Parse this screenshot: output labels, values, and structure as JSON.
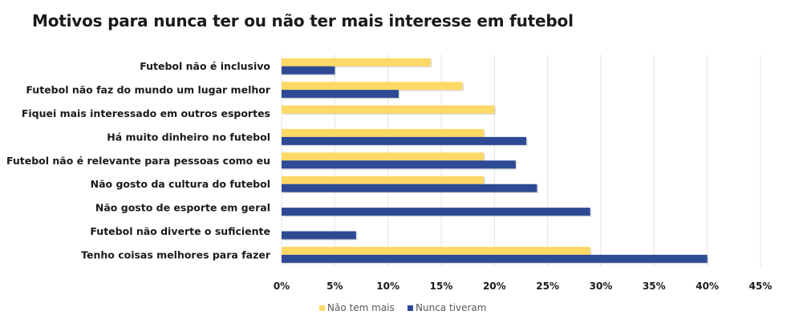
{
  "chart_data": {
    "type": "bar",
    "orientation": "horizontal",
    "title": "Motivos para nunca ter ou não ter mais interesse em futebol",
    "categories": [
      "Futebol não é inclusivo",
      "Futebol não faz do mundo um lugar melhor",
      "Fiquei mais interessado em outros esportes",
      "Há muito dinheiro no futebol",
      "Futebol não é relevante para pessoas como eu",
      "Não gosto da cultura do futebol",
      "Não gosto de esporte em geral",
      "Futebol não diverte o suficiente",
      "Tenho coisas melhores para fazer"
    ],
    "series": [
      {
        "name": "Não tem mais",
        "color": "#FFD966",
        "values": [
          14,
          17,
          20,
          19,
          19,
          19,
          0,
          0,
          29
        ]
      },
      {
        "name": "Nunca tiveram",
        "color": "#2F4A94",
        "values": [
          5,
          11,
          0,
          23,
          22,
          24,
          29,
          7,
          40
        ]
      }
    ],
    "xlim": [
      0,
      45
    ],
    "xticks": [
      0,
      5,
      10,
      15,
      20,
      25,
      30,
      35,
      40,
      45
    ],
    "tick_suffix": "%",
    "grid": true,
    "legend_position": "bottom"
  }
}
